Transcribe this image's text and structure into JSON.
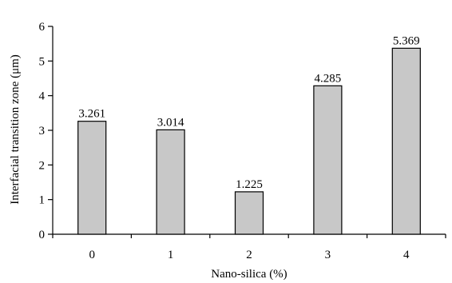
{
  "chart_data": {
    "type": "bar",
    "categories": [
      "0",
      "1",
      "2",
      "3",
      "4"
    ],
    "values": [
      3.261,
      3.014,
      1.225,
      4.285,
      5.369
    ],
    "data_labels": [
      "3.261",
      "3.014",
      "1.225",
      "4.285",
      "5.369"
    ],
    "xlabel": "Nano-silica (%)",
    "ylabel": "Interfacial transition zone (μm)",
    "ylim": [
      0,
      6
    ],
    "yticks": [
      0,
      1,
      2,
      3,
      4,
      5,
      6
    ],
    "ytick_labels": [
      "0",
      "1",
      "2",
      "3",
      "4",
      "5",
      "6"
    ],
    "grid": false,
    "legend": "none",
    "bar_fill": "#c8c8c8",
    "bar_stroke": "#000000"
  }
}
